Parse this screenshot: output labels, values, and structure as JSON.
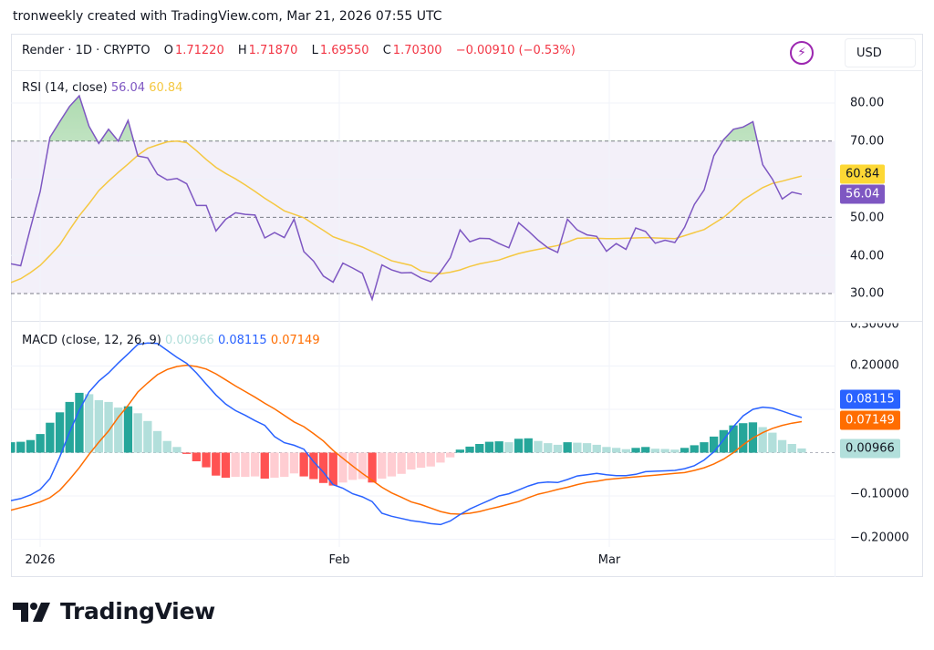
{
  "caption": "tronweekly created with TradingView.com, Mar 21, 2026 07:55 UTC",
  "header": {
    "symbol": "Render · 1D · CRYPTO",
    "o_label": "O",
    "o_value": "1.71220",
    "h_label": "H",
    "h_value": "1.71870",
    "l_label": "L",
    "l_value": "1.69550",
    "c_label": "C",
    "c_value": "1.70300",
    "change": "−0.00910 (−0.53%)",
    "currency": "USD",
    "lightning_icon": "lightning-icon"
  },
  "rsi_legend": {
    "title": "RSI (14, close)",
    "rsi": "56.04",
    "ma": "60.84"
  },
  "macd_legend": {
    "title": "MACD (close, 12, 26, 9)",
    "hist": "0.00966",
    "macd": "0.08115",
    "signal": "0.07149"
  },
  "rsi_axis": [
    "80.00",
    "70.00",
    "50.00",
    "40.00",
    "30.00"
  ],
  "macd_axis": [
    "0.30000",
    "0.20000",
    "−0.10000",
    "−0.20000"
  ],
  "badges": {
    "rsi_ma": "60.84",
    "rsi": "56.04",
    "macd": "0.08115",
    "signal": "0.07149",
    "hist": "0.00966"
  },
  "time_axis": [
    "2026",
    "Feb",
    "Mar"
  ],
  "logo": "TradingView",
  "colors": {
    "rsi": "#7e57c2",
    "rsi_ma": "#f5c842",
    "rsi_band": "#7e57c2",
    "macd": "#2962ff",
    "signal": "#ff6d00",
    "hist_up_strong": "#26a69a",
    "hist_up_weak": "#b2dfdb",
    "hist_down_strong": "#ff5252",
    "hist_down_weak": "#ffcdd2",
    "negative": "#f23645"
  },
  "chart_data": [
    {
      "type": "line",
      "title": "RSI (14, close)",
      "ylim": [
        25,
        85
      ],
      "bands": {
        "upper": 70,
        "middle": 50,
        "lower": 30
      },
      "series": [
        {
          "name": "RSI",
          "values": [
            37.8,
            37.3,
            47.2,
            56.8,
            71.0,
            75.1,
            79.1,
            81.9,
            73.9,
            69.4,
            73.1,
            70.0,
            75.4,
            66.1,
            65.6,
            61.3,
            59.8,
            60.2,
            58.8,
            53.1,
            53.1,
            46.4,
            49.5,
            51.2,
            50.8,
            50.6,
            44.6,
            46.0,
            44.7,
            49.5,
            41.0,
            38.5,
            34.6,
            33.0,
            38.0,
            36.7,
            35.3,
            28.5,
            37.5,
            36.2,
            35.4,
            35.5,
            34.1,
            33.1,
            35.7,
            39.4,
            46.7,
            43.6,
            44.5,
            44.4,
            43.1,
            42.0,
            48.6,
            46.4,
            44.0,
            42.0,
            40.8,
            49.5,
            46.7,
            45.4,
            45.0,
            41.1,
            43.1,
            41.6,
            47.2,
            46.3,
            43.2,
            44.0,
            43.4,
            47.4,
            53.4,
            57.2,
            66.2,
            70.4,
            73.1,
            73.7,
            75.1,
            63.8,
            60.0,
            54.8,
            56.6,
            56.04
          ]
        },
        {
          "name": "RSI-based MA",
          "values": [
            32.9,
            33.9,
            35.5,
            37.4,
            40.0,
            42.8,
            46.7,
            50.4,
            53.6,
            57.0,
            59.5,
            61.8,
            64.0,
            66.3,
            68.1,
            69.0,
            69.8,
            70.0,
            69.6,
            67.5,
            65.2,
            63.1,
            61.5,
            60.1,
            58.5,
            56.8,
            55.0,
            53.4,
            51.7,
            50.8,
            49.9,
            48.2,
            46.6,
            44.9,
            44.0,
            43.1,
            42.2,
            41.0,
            39.8,
            38.6,
            38.0,
            37.4,
            35.9,
            35.4,
            35.2,
            35.6,
            36.2,
            37.1,
            37.8,
            38.3,
            38.8,
            39.7,
            40.5,
            41.1,
            41.6,
            42.1,
            42.6,
            43.5,
            44.5,
            44.6,
            44.5,
            44.4,
            44.4,
            44.5,
            44.6,
            44.7,
            44.6,
            44.5,
            44.4,
            45.2,
            46.0,
            46.8,
            48.4,
            50.0,
            52.2,
            54.6,
            56.2,
            57.8,
            58.9,
            59.5,
            60.2,
            60.84
          ]
        }
      ]
    },
    {
      "type": "bar+line",
      "title": "MACD (close, 12, 26, 9)",
      "ylim": [
        -0.22,
        0.31
      ],
      "series": [
        {
          "name": "Histogram",
          "values": [
            0.024,
            0.025,
            0.029,
            0.043,
            0.069,
            0.093,
            0.117,
            0.138,
            0.135,
            0.121,
            0.117,
            0.104,
            0.107,
            0.091,
            0.073,
            0.05,
            0.027,
            0.013,
            -0.003,
            -0.02,
            -0.034,
            -0.053,
            -0.058,
            -0.056,
            -0.056,
            -0.055,
            -0.06,
            -0.058,
            -0.056,
            -0.048,
            -0.055,
            -0.061,
            -0.07,
            -0.076,
            -0.069,
            -0.063,
            -0.061,
            -0.069,
            -0.06,
            -0.055,
            -0.049,
            -0.039,
            -0.035,
            -0.032,
            -0.023,
            -0.011,
            0.007,
            0.014,
            0.02,
            0.025,
            0.026,
            0.024,
            0.032,
            0.033,
            0.027,
            0.022,
            0.018,
            0.024,
            0.023,
            0.022,
            0.018,
            0.013,
            0.011,
            0.008,
            0.011,
            0.013,
            0.009,
            0.0085,
            0.007,
            0.011,
            0.017,
            0.024,
            0.037,
            0.052,
            0.063,
            0.068,
            0.07,
            0.059,
            0.046,
            0.029,
            0.02,
            0.00966
          ]
        },
        {
          "name": "MACD",
          "values": [
            -0.111,
            -0.106,
            -0.098,
            -0.085,
            -0.06,
            -0.01,
            0.047,
            0.098,
            0.14,
            0.165,
            0.184,
            0.207,
            0.228,
            0.25,
            0.253,
            0.252,
            0.236,
            0.22,
            0.206,
            0.184,
            0.158,
            0.133,
            0.112,
            0.097,
            0.086,
            0.074,
            0.063,
            0.037,
            0.023,
            0.017,
            0.008,
            -0.021,
            -0.045,
            -0.074,
            -0.082,
            -0.095,
            -0.102,
            -0.113,
            -0.14,
            -0.147,
            -0.152,
            -0.157,
            -0.16,
            -0.164,
            -0.166,
            -0.158,
            -0.143,
            -0.13,
            -0.12,
            -0.11,
            -0.1,
            -0.095,
            -0.086,
            -0.077,
            -0.07,
            -0.068,
            -0.069,
            -0.062,
            -0.054,
            -0.051,
            -0.048,
            -0.051,
            -0.053,
            -0.053,
            -0.05,
            -0.044,
            -0.043,
            -0.042,
            -0.041,
            -0.037,
            -0.03,
            -0.017,
            0.002,
            0.03,
            0.06,
            0.085,
            0.1,
            0.105,
            0.103,
            0.096,
            0.088,
            0.08115
          ]
        },
        {
          "name": "Signal",
          "values": [
            -0.133,
            -0.127,
            -0.121,
            -0.114,
            -0.104,
            -0.087,
            -0.062,
            -0.035,
            -0.004,
            0.024,
            0.05,
            0.082,
            0.109,
            0.14,
            0.161,
            0.18,
            0.192,
            0.199,
            0.202,
            0.199,
            0.193,
            0.182,
            0.168,
            0.154,
            0.141,
            0.128,
            0.114,
            0.101,
            0.086,
            0.071,
            0.06,
            0.044,
            0.027,
            0.005,
            -0.013,
            -0.031,
            -0.048,
            -0.064,
            -0.08,
            -0.093,
            -0.103,
            -0.114,
            -0.12,
            -0.128,
            -0.136,
            -0.141,
            -0.142,
            -0.14,
            -0.136,
            -0.13,
            -0.125,
            -0.119,
            -0.113,
            -0.104,
            -0.096,
            -0.091,
            -0.085,
            -0.08,
            -0.074,
            -0.069,
            -0.066,
            -0.062,
            -0.06,
            -0.058,
            -0.056,
            -0.054,
            -0.052,
            -0.05,
            -0.048,
            -0.046,
            -0.041,
            -0.035,
            -0.026,
            -0.015,
            0.0,
            0.018,
            0.034,
            0.046,
            0.056,
            0.063,
            0.068,
            0.07149
          ]
        }
      ]
    }
  ]
}
